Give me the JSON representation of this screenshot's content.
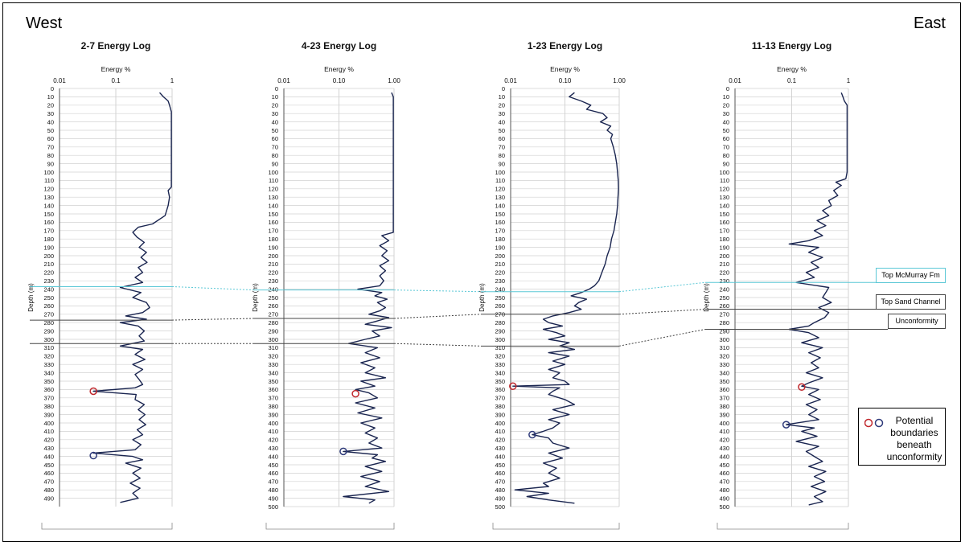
{
  "page": {
    "west_label": "West",
    "east_label": "East"
  },
  "correlations": [
    {
      "label": "Top McMurray Fm",
      "color": "#5bc8d6",
      "style": "dotted",
      "depths": [
        237,
        241,
        243,
        232
      ]
    },
    {
      "label": "Top Sand Channel",
      "color": "#444444",
      "style": "dotted",
      "depths": [
        277,
        275,
        270,
        264
      ]
    },
    {
      "label": "Unconformity",
      "color": "#444444",
      "style": "dotted",
      "depths": [
        305,
        305,
        308,
        288
      ]
    }
  ],
  "legend": {
    "text": "Potential boundaries beneath unconformity",
    "colors": [
      "#c0282d",
      "#2e3a7a"
    ]
  },
  "chart_data": [
    {
      "type": "line",
      "title": "2-7 Energy Log",
      "xlabel": "Energy %",
      "ylabel": "Depth (m)",
      "xscale": "log",
      "xlim": [
        0.01,
        1
      ],
      "xticks": [
        0.01,
        0.1,
        1
      ],
      "xtick_labels": [
        "0.01",
        "0.1",
        "1"
      ],
      "ylim": [
        0,
        500
      ],
      "yticks": [
        0,
        10,
        20,
        30,
        40,
        50,
        60,
        70,
        80,
        90,
        100,
        110,
        120,
        130,
        140,
        150,
        160,
        170,
        180,
        190,
        200,
        210,
        220,
        230,
        240,
        250,
        260,
        270,
        280,
        290,
        300,
        310,
        320,
        330,
        340,
        350,
        360,
        370,
        380,
        390,
        400,
        410,
        420,
        430,
        440,
        450,
        460,
        470,
        480,
        490
      ],
      "grid": true,
      "color": "#1a2550",
      "depth": [
        5,
        10,
        15,
        20,
        28,
        35,
        40,
        60,
        80,
        100,
        118,
        122,
        130,
        140,
        152,
        162,
        166,
        172,
        178,
        184,
        190,
        196,
        202,
        208,
        214,
        220,
        226,
        232,
        238,
        244,
        250,
        256,
        262,
        268,
        272,
        276,
        280,
        284,
        290,
        296,
        302,
        308,
        312,
        318,
        324,
        330,
        336,
        342,
        348,
        354,
        358,
        362,
        366,
        372,
        378,
        384,
        390,
        396,
        402,
        408,
        414,
        420,
        426,
        432,
        436,
        440,
        444,
        448,
        454,
        460,
        466,
        472,
        478,
        484,
        490,
        495
      ],
      "energy": [
        0.6,
        0.7,
        0.85,
        0.9,
        0.97,
        0.97,
        0.97,
        0.97,
        0.97,
        0.97,
        0.97,
        0.85,
        0.9,
        0.85,
        0.75,
        0.45,
        0.25,
        0.2,
        0.24,
        0.32,
        0.26,
        0.35,
        0.28,
        0.36,
        0.25,
        0.3,
        0.22,
        0.3,
        0.12,
        0.28,
        0.2,
        0.35,
        0.4,
        0.3,
        0.15,
        0.35,
        0.12,
        0.25,
        0.32,
        0.26,
        0.32,
        0.12,
        0.3,
        0.22,
        0.33,
        0.2,
        0.3,
        0.22,
        0.26,
        0.3,
        0.22,
        0.04,
        0.23,
        0.22,
        0.32,
        0.25,
        0.33,
        0.26,
        0.34,
        0.24,
        0.3,
        0.2,
        0.28,
        0.22,
        0.04,
        0.2,
        0.3,
        0.15,
        0.28,
        0.2,
        0.27,
        0.18,
        0.27,
        0.2,
        0.25,
        0.12
      ],
      "markers": [
        {
          "depth": 362,
          "energy": 0.04,
          "color": "#c0282d"
        },
        {
          "depth": 439,
          "energy": 0.04,
          "color": "#2e3a7a"
        }
      ]
    },
    {
      "type": "line",
      "title": "4-23 Energy Log",
      "xlabel": "Energy %",
      "ylabel": "Depth (m)",
      "xscale": "log",
      "xlim": [
        0.01,
        1
      ],
      "xticks": [
        0.01,
        0.1,
        1
      ],
      "xtick_labels": [
        "0.01",
        "0.10",
        "1.00"
      ],
      "ylim": [
        0,
        500
      ],
      "yticks": [
        0,
        10,
        20,
        30,
        40,
        50,
        60,
        70,
        80,
        90,
        100,
        110,
        120,
        130,
        140,
        150,
        160,
        170,
        180,
        190,
        200,
        210,
        220,
        230,
        240,
        250,
        260,
        270,
        280,
        290,
        300,
        310,
        320,
        330,
        340,
        350,
        360,
        370,
        380,
        390,
        400,
        410,
        420,
        430,
        440,
        450,
        460,
        470,
        480,
        490,
        500
      ],
      "grid": true,
      "color": "#1a2550",
      "depth": [
        5,
        10,
        20,
        60,
        100,
        140,
        172,
        176,
        182,
        188,
        194,
        200,
        206,
        212,
        218,
        224,
        230,
        236,
        240,
        244,
        248,
        252,
        256,
        262,
        266,
        270,
        274,
        278,
        282,
        286,
        290,
        296,
        300,
        305,
        310,
        316,
        322,
        328,
        334,
        340,
        346,
        350,
        356,
        360,
        364,
        370,
        376,
        382,
        388,
        394,
        400,
        406,
        412,
        418,
        424,
        430,
        434,
        438,
        442,
        446,
        452,
        458,
        464,
        470,
        476,
        482,
        488,
        492,
        496
      ],
      "energy": [
        0.9,
        0.97,
        0.97,
        0.97,
        0.97,
        0.97,
        0.97,
        0.6,
        0.8,
        0.55,
        0.75,
        0.6,
        0.8,
        0.55,
        0.7,
        0.55,
        0.65,
        0.55,
        0.22,
        0.6,
        0.45,
        0.75,
        0.5,
        0.7,
        0.55,
        0.35,
        0.8,
        0.5,
        0.3,
        0.9,
        0.4,
        0.55,
        0.3,
        0.15,
        0.5,
        0.3,
        0.55,
        0.25,
        0.45,
        0.3,
        0.7,
        0.25,
        0.45,
        0.2,
        0.35,
        0.5,
        0.2,
        0.45,
        0.22,
        0.6,
        0.25,
        0.45,
        0.3,
        0.5,
        0.35,
        0.6,
        0.12,
        0.5,
        0.4,
        0.7,
        0.3,
        0.6,
        0.25,
        0.55,
        0.3,
        0.8,
        0.12,
        0.45,
        0.35
      ],
      "markers": [
        {
          "depth": 365,
          "energy": 0.2,
          "color": "#c0282d"
        },
        {
          "depth": 434,
          "energy": 0.12,
          "color": "#2e3a7a"
        }
      ]
    },
    {
      "type": "line",
      "title": "1-23 Energy Log",
      "xlabel": "Energy %",
      "ylabel": "Depth (m)",
      "xscale": "log",
      "xlim": [
        0.01,
        1
      ],
      "xticks": [
        0.01,
        0.1,
        1
      ],
      "xtick_labels": [
        "0.01",
        "0.10",
        "1.00"
      ],
      "ylim": [
        0,
        500
      ],
      "yticks": [
        0,
        10,
        20,
        30,
        40,
        50,
        60,
        70,
        80,
        90,
        100,
        110,
        120,
        130,
        140,
        150,
        160,
        170,
        180,
        190,
        200,
        210,
        220,
        230,
        240,
        250,
        260,
        270,
        280,
        290,
        300,
        310,
        320,
        330,
        340,
        350,
        360,
        370,
        380,
        390,
        400,
        410,
        420,
        430,
        440,
        450,
        460,
        470,
        480,
        490,
        500
      ],
      "grid": true,
      "color": "#1a2550",
      "depth": [
        5,
        10,
        15,
        20,
        25,
        30,
        35,
        40,
        45,
        50,
        55,
        60,
        70,
        80,
        90,
        100,
        110,
        120,
        130,
        140,
        150,
        160,
        170,
        180,
        190,
        200,
        210,
        220,
        230,
        236,
        240,
        244,
        248,
        252,
        256,
        260,
        264,
        268,
        272,
        276,
        280,
        284,
        288,
        292,
        296,
        300,
        304,
        308,
        312,
        316,
        320,
        326,
        330,
        336,
        340,
        346,
        350,
        354,
        356,
        358,
        362,
        366,
        372,
        378,
        384,
        390,
        396,
        400,
        406,
        410,
        414,
        418,
        424,
        430,
        436,
        442,
        448,
        454,
        460,
        466,
        472,
        476,
        480,
        484,
        488,
        492,
        496
      ],
      "energy": [
        0.15,
        0.12,
        0.2,
        0.3,
        0.25,
        0.5,
        0.6,
        0.45,
        0.7,
        0.6,
        0.75,
        0.7,
        0.78,
        0.85,
        0.9,
        0.93,
        0.96,
        0.97,
        0.95,
        0.93,
        0.9,
        0.85,
        0.8,
        0.72,
        0.68,
        0.6,
        0.55,
        0.48,
        0.42,
        0.35,
        0.28,
        0.2,
        0.13,
        0.25,
        0.18,
        0.15,
        0.2,
        0.12,
        0.06,
        0.04,
        0.05,
        0.09,
        0.04,
        0.07,
        0.1,
        0.05,
        0.12,
        0.08,
        0.15,
        0.05,
        0.12,
        0.06,
        0.1,
        0.05,
        0.08,
        0.06,
        0.1,
        0.12,
        0.011,
        0.08,
        0.06,
        0.05,
        0.1,
        0.15,
        0.06,
        0.12,
        0.05,
        0.08,
        0.06,
        0.04,
        0.025,
        0.05,
        0.06,
        0.12,
        0.05,
        0.09,
        0.04,
        0.07,
        0.05,
        0.08,
        0.04,
        0.05,
        0.012,
        0.05,
        0.02,
        0.05,
        0.15
      ],
      "markers": [
        {
          "depth": 356,
          "energy": 0.011,
          "color": "#c0282d"
        },
        {
          "depth": 414,
          "energy": 0.025,
          "color": "#2e3a7a"
        }
      ]
    },
    {
      "type": "line",
      "title": "11-13 Energy Log",
      "xlabel": "Energy %",
      "ylabel": "Depth (m)",
      "xscale": "log",
      "xlim": [
        0.01,
        1
      ],
      "xticks": [
        0.01,
        0.1,
        1
      ],
      "xtick_labels": [
        "0.01",
        "0.1",
        "1"
      ],
      "ylim": [
        0,
        500
      ],
      "yticks": [
        0,
        10,
        20,
        30,
        40,
        50,
        60,
        70,
        80,
        90,
        100,
        110,
        120,
        130,
        140,
        150,
        160,
        170,
        180,
        190,
        200,
        210,
        220,
        230,
        240,
        250,
        260,
        270,
        280,
        290,
        300,
        310,
        320,
        330,
        340,
        350,
        360,
        370,
        380,
        390,
        400,
        410,
        420,
        430,
        440,
        450,
        460,
        470,
        480,
        490,
        500
      ],
      "grid": true,
      "color": "#1a2550",
      "depth": [
        5,
        10,
        15,
        20,
        40,
        60,
        80,
        100,
        108,
        112,
        116,
        122,
        128,
        134,
        140,
        146,
        152,
        158,
        164,
        170,
        176,
        182,
        186,
        190,
        196,
        202,
        208,
        214,
        220,
        226,
        232,
        238,
        244,
        250,
        256,
        262,
        268,
        274,
        280,
        284,
        288,
        292,
        298,
        304,
        310,
        316,
        322,
        328,
        334,
        340,
        346,
        352,
        356,
        360,
        366,
        372,
        378,
        384,
        390,
        396,
        402,
        406,
        410,
        416,
        422,
        428,
        434,
        440,
        446,
        452,
        458,
        464,
        470,
        476,
        482,
        488,
        494,
        498
      ],
      "energy": [
        0.75,
        0.8,
        0.85,
        0.95,
        0.95,
        0.95,
        0.95,
        0.95,
        0.9,
        0.6,
        0.75,
        0.55,
        0.65,
        0.45,
        0.5,
        0.35,
        0.45,
        0.28,
        0.4,
        0.25,
        0.35,
        0.2,
        0.09,
        0.3,
        0.2,
        0.35,
        0.22,
        0.3,
        0.18,
        0.25,
        0.12,
        0.45,
        0.4,
        0.35,
        0.5,
        0.3,
        0.45,
        0.38,
        0.25,
        0.2,
        0.09,
        0.2,
        0.3,
        0.15,
        0.35,
        0.2,
        0.32,
        0.22,
        0.3,
        0.18,
        0.35,
        0.2,
        0.15,
        0.3,
        0.2,
        0.32,
        0.18,
        0.28,
        0.2,
        0.3,
        0.08,
        0.25,
        0.15,
        0.28,
        0.12,
        0.3,
        0.18,
        0.25,
        0.35,
        0.2,
        0.4,
        0.25,
        0.38,
        0.22,
        0.4,
        0.25,
        0.35,
        0.2
      ],
      "markers": [
        {
          "depth": 357,
          "energy": 0.15,
          "color": "#c0282d"
        },
        {
          "depth": 402,
          "energy": 0.08,
          "color": "#2e3a7a"
        }
      ]
    }
  ]
}
